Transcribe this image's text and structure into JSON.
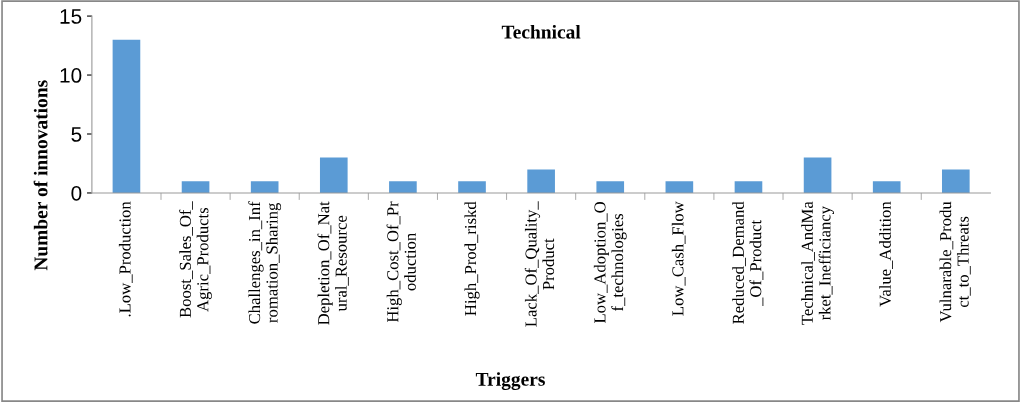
{
  "chart_data": {
    "type": "bar",
    "title": "Technical",
    "xlabel": "Triggers",
    "ylabel": "Number of innovations",
    "categories": [
      ".Low_Production",
      "Boost_Sales_Of_\nAgric_Products",
      "Challenges_in_Inf\nromation_Sharing",
      "Depletion_Of_Nat\nural_Resource",
      "High_Cost_Of_Pr\noduction",
      "High_Prod_riskd",
      "Lack_Of_Quality_\nProduct",
      "Low_Adoption_O\nf_technologies",
      "Low_Cash_Flow",
      "Reduced_Demand\n_Of_Product",
      "Technical_AndMa\nrket_Inefficiancy",
      "Value_Addition",
      "Vulnarable_Produ\nct_to_Threats"
    ],
    "values": [
      13,
      1,
      1,
      3,
      1,
      1,
      2,
      1,
      1,
      1,
      3,
      1,
      2
    ],
    "color": "#5b9bd5",
    "ylim": [
      0,
      15
    ],
    "yticks": [
      0,
      5,
      10,
      15
    ],
    "grid": false
  }
}
